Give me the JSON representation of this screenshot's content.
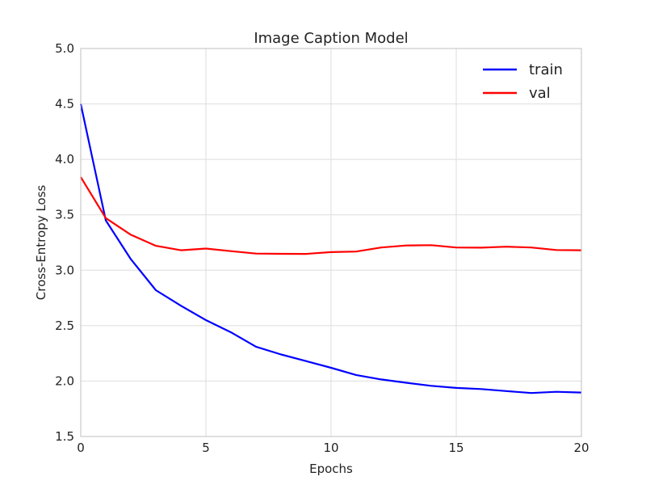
{
  "chart_data": {
    "type": "line",
    "title": "Image Caption Model",
    "xlabel": "Epochs",
    "ylabel": "Cross-Entropy Loss",
    "xlim": [
      0,
      20
    ],
    "ylim": [
      1.5,
      5.0
    ],
    "x_ticks": [
      "0",
      "5",
      "10",
      "15",
      "20"
    ],
    "y_ticks": [
      "1.5",
      "2.0",
      "2.5",
      "3.0",
      "3.5",
      "4.0",
      "4.5",
      "5.0"
    ],
    "grid": true,
    "legend_position": "top-right",
    "x": [
      0,
      1,
      2,
      3,
      4,
      5,
      6,
      7,
      8,
      9,
      10,
      11,
      12,
      13,
      14,
      15,
      16,
      17,
      18,
      19,
      20
    ],
    "series": [
      {
        "name": "train",
        "color": "#0000ff",
        "values": [
          4.5,
          3.45,
          3.1,
          2.82,
          2.68,
          2.55,
          2.44,
          2.31,
          2.24,
          2.18,
          2.12,
          2.055,
          2.015,
          1.985,
          1.957,
          1.938,
          1.928,
          1.91,
          1.892,
          1.903,
          1.897
        ]
      },
      {
        "name": "val",
        "color": "#ff0000",
        "values": [
          3.84,
          3.47,
          3.32,
          3.22,
          3.18,
          3.195,
          3.172,
          3.15,
          3.148,
          3.147,
          3.163,
          3.168,
          3.205,
          3.223,
          3.226,
          3.205,
          3.203,
          3.212,
          3.205,
          3.182,
          3.18
        ]
      }
    ]
  }
}
